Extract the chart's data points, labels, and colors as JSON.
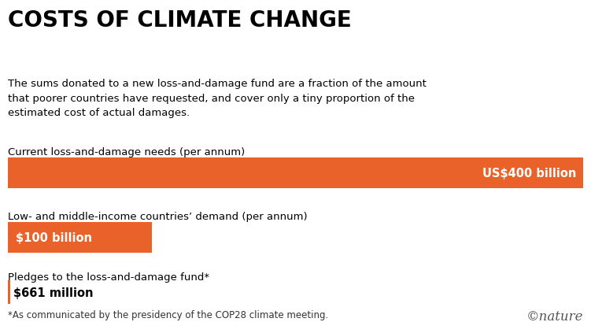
{
  "title": "COSTS OF CLIMATE CHANGE",
  "subtitle": "The sums donated to a new loss-and-damage fund are a fraction of the amount\nthat poorer countries have requested, and cover only a tiny proportion of the\nestimated cost of actual damages.",
  "bar_color": "#E8622A",
  "background_color": "#ffffff",
  "bars": [
    {
      "label": "Current loss-and-damage needs (per annum)",
      "value": 400,
      "max_value": 400,
      "text": "US$400 billion",
      "text_color": "#ffffff",
      "text_align": "right"
    },
    {
      "label": "Low- and middle-income countries’ demand (per annum)",
      "value": 100,
      "max_value": 400,
      "text": "$100 billion",
      "text_color": "#ffffff",
      "text_align": "left"
    },
    {
      "label": "Pledges to the loss-and-damage fund*",
      "value": 0.661,
      "max_value": 400,
      "text": "$661 million",
      "text_color": "#000000",
      "text_align": "left_outside"
    }
  ],
  "footnote": "*As communicated by the presidency of the COP28 climate meeting.",
  "nature_credit": "©nature",
  "title_fontsize": 20,
  "subtitle_fontsize": 9.5,
  "label_fontsize": 9.5,
  "bar_label_fontsize": 10.5,
  "footnote_fontsize": 8.5,
  "nature_fontsize": 12
}
